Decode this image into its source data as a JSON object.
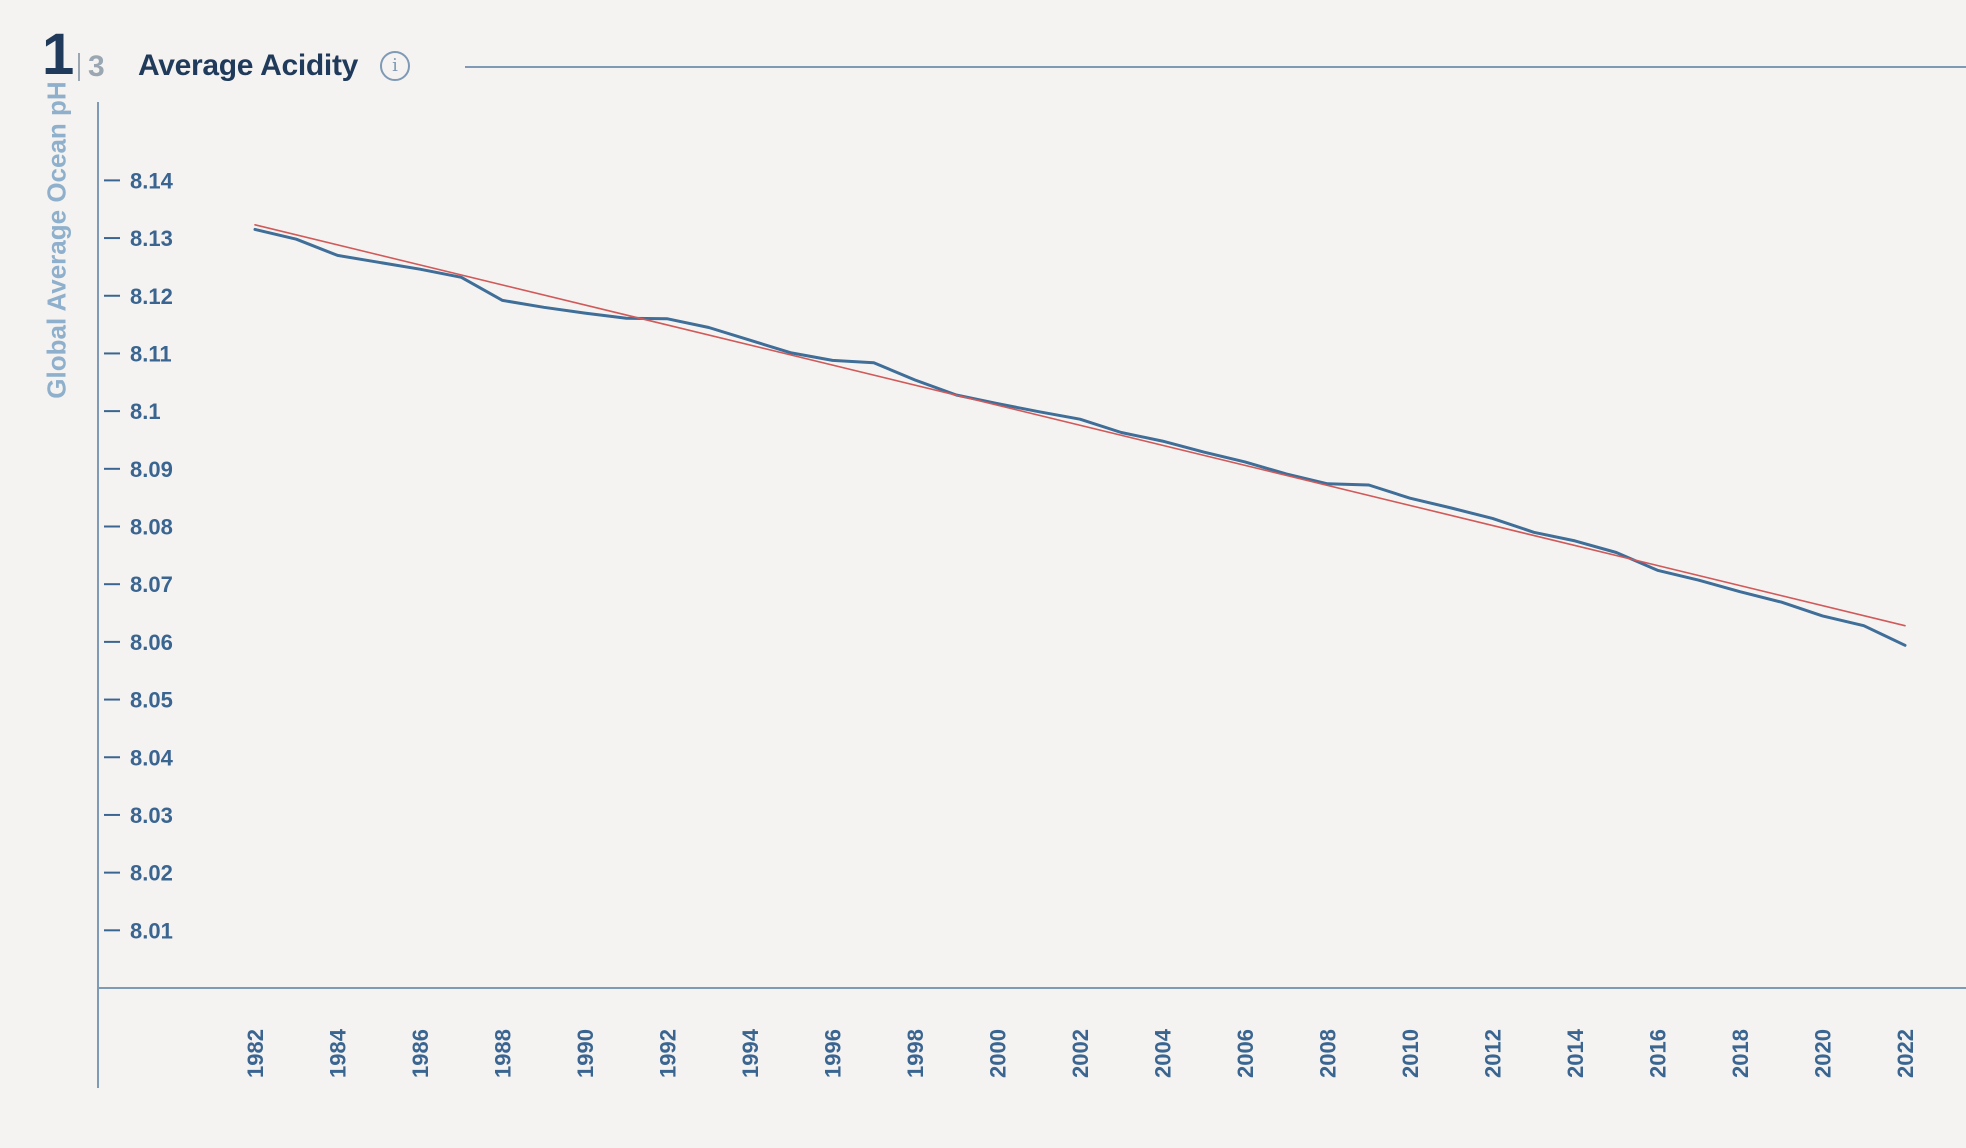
{
  "header": {
    "page_current": "1",
    "page_total": "3",
    "title": "Average Acidity",
    "info_icon": "info-icon"
  },
  "colors": {
    "background": "#f5f3f1",
    "title": "#1f3a5a",
    "axis": "#7e9ab5",
    "tick_label": "#3a6590",
    "ylabel": "#8fb0cc",
    "series": "#3f6e99",
    "trend": "#d05a5a"
  },
  "chart_data": {
    "type": "line",
    "title": "Average Acidity",
    "xlabel": "",
    "ylabel": "Global Average Ocean pH",
    "ylim": [
      8.0,
      8.147
    ],
    "xlim": [
      1982,
      2022
    ],
    "y_ticks": [
      8.14,
      8.13,
      8.12,
      8.11,
      8.1,
      8.09,
      8.08,
      8.07,
      8.06,
      8.05,
      8.04,
      8.03,
      8.02,
      8.01
    ],
    "y_tick_labels": [
      "8.14",
      "8.13",
      "8.12",
      "8.11",
      "8.1",
      "8.09",
      "8.08",
      "8.07",
      "8.06",
      "8.05",
      "8.04",
      "8.03",
      "8.02",
      "8.01"
    ],
    "x_ticks": [
      1982,
      1984,
      1986,
      1988,
      1990,
      1992,
      1994,
      1996,
      1998,
      2000,
      2002,
      2004,
      2006,
      2008,
      2010,
      2012,
      2014,
      2016,
      2018,
      2020,
      2022
    ],
    "x_tick_labels": [
      "1982",
      "1984",
      "1986",
      "1988",
      "1990",
      "1992",
      "1994",
      "1996",
      "1998",
      "2000",
      "2002",
      "2004",
      "2006",
      "2008",
      "2010",
      "2012",
      "2014",
      "2016",
      "2018",
      "2020",
      "2022"
    ],
    "grid": false,
    "legend": "none",
    "series": [
      {
        "x": [
          1982,
          1983,
          1984,
          1985,
          1986,
          1987,
          1988,
          1989,
          1990,
          1991,
          1992,
          1993,
          1994,
          1995,
          1996,
          1997,
          1998,
          1999,
          2000,
          2001,
          2002,
          2003,
          2004,
          2005,
          2006,
          2007,
          2008,
          2009,
          2010,
          2011,
          2012,
          2013,
          2014,
          2015,
          2016,
          2017,
          2018,
          2019,
          2020,
          2021,
          2022
        ],
        "y": [
          8.1315,
          8.1298,
          8.127,
          8.1258,
          8.1246,
          8.1232,
          8.1192,
          8.118,
          8.117,
          8.1161,
          8.116,
          8.1145,
          8.1123,
          8.1101,
          8.1088,
          8.1084,
          8.1054,
          8.1028,
          8.1013,
          8.0999,
          8.0986,
          8.0963,
          8.0948,
          8.0929,
          8.0912,
          8.0891,
          8.0874,
          8.0872,
          8.0849,
          8.0832,
          8.0814,
          8.079,
          8.0775,
          8.0755,
          8.0724,
          8.0707,
          8.0687,
          8.0669,
          8.0645,
          8.0628,
          8.0594
        ]
      },
      {
        "x": [
          1982,
          2022
        ],
        "y": [
          8.1323,
          8.0628
        ]
      }
    ]
  }
}
